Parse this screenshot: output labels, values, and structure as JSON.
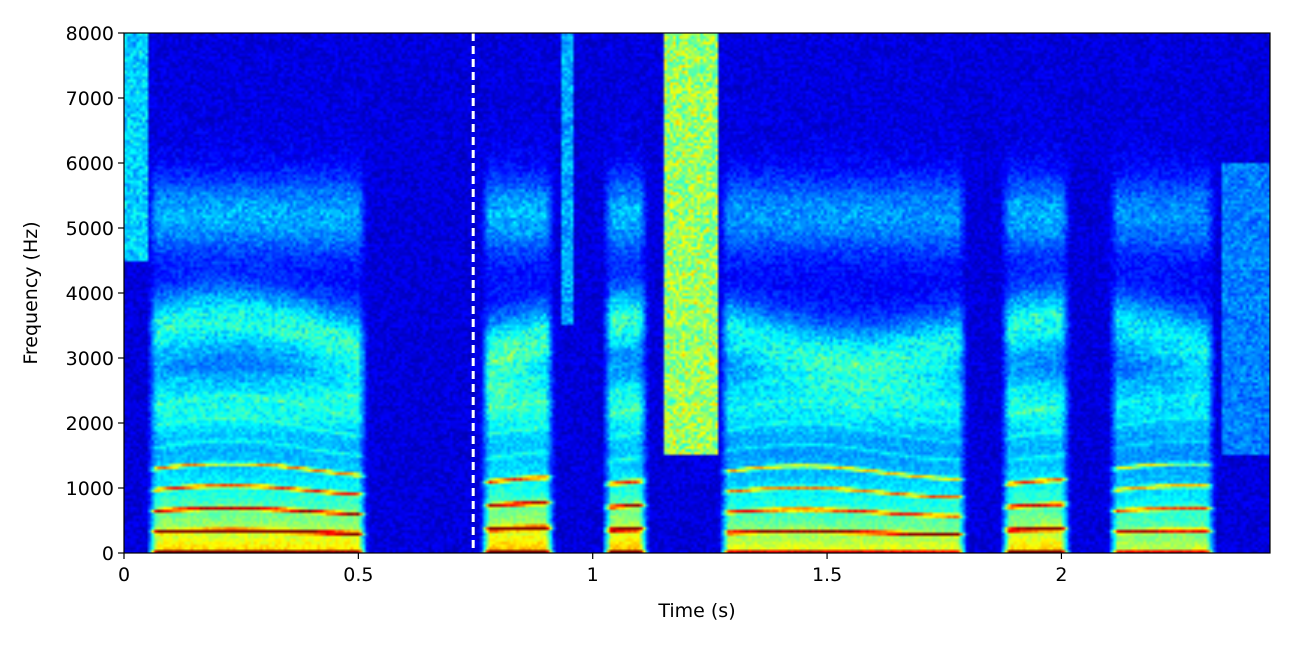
{
  "chart_data": {
    "type": "heatmap",
    "title": "",
    "xlabel": "Time (s)",
    "ylabel": "Frequency (Hz)",
    "xlim": [
      0,
      2.445
    ],
    "ylim": [
      0,
      8000
    ],
    "x_ticks": [
      0,
      0.5,
      1,
      1.5,
      2
    ],
    "x_tick_labels": [
      "0",
      "0.5",
      "1",
      "1.5",
      "2"
    ],
    "y_ticks": [
      0,
      1000,
      2000,
      3000,
      4000,
      5000,
      6000,
      7000,
      8000
    ],
    "y_tick_labels": [
      "0",
      "1000",
      "2000",
      "3000",
      "4000",
      "5000",
      "6000",
      "7000",
      "8000"
    ],
    "colormap": "jet",
    "grid": false,
    "annotations": [
      {
        "type": "vertical-dashed-line",
        "x": 0.745,
        "color": "#ffffff"
      }
    ],
    "voiced_segments": [
      {
        "start": 0.05,
        "end": 0.52,
        "f0": 160,
        "energy": 0.95
      },
      {
        "start": 0.76,
        "end": 0.92,
        "f0": 180,
        "energy": 1.0
      },
      {
        "start": 1.02,
        "end": 1.12,
        "f0": 175,
        "energy": 1.0
      },
      {
        "start": 1.27,
        "end": 1.8,
        "f0": 155,
        "energy": 0.85
      },
      {
        "start": 1.87,
        "end": 2.02,
        "f0": 175,
        "energy": 0.95
      },
      {
        "start": 2.1,
        "end": 2.33,
        "f0": 160,
        "energy": 0.8
      }
    ],
    "frication_segments": [
      {
        "start": 0.0,
        "end": 0.05,
        "low": 4500,
        "high": 8000,
        "level": 0.3
      },
      {
        "start": 0.93,
        "end": 0.96,
        "low": 3500,
        "high": 8000,
        "level": 0.25
      },
      {
        "start": 1.15,
        "end": 1.27,
        "low": 1500,
        "high": 8000,
        "level": 0.55
      },
      {
        "start": 2.34,
        "end": 2.445,
        "low": 1500,
        "high": 6000,
        "level": 0.2
      }
    ]
  }
}
